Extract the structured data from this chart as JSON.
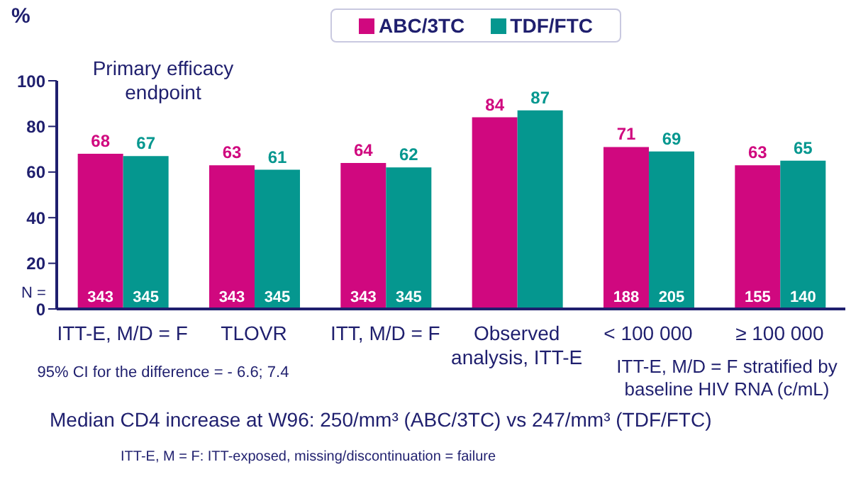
{
  "chart_data": {
    "type": "bar",
    "ylabel": "%",
    "categories": [
      "ITT-E, M/D = F",
      "TLOVR",
      "ITT, M/D = F",
      "Observed analysis, ITT-E",
      "< 100 000",
      "≥ 100 000"
    ],
    "series": [
      {
        "name": "ABC/3TC",
        "color": "#d0087f",
        "values": [
          68,
          63,
          64,
          84,
          71,
          63
        ]
      },
      {
        "name": "TDF/FTC",
        "color": "#05978f",
        "values": [
          67,
          61,
          62,
          87,
          69,
          65
        ]
      }
    ],
    "ylim": [
      0,
      100
    ],
    "yticks": [
      0,
      20,
      40,
      60,
      80,
      100
    ],
    "legend": "top right",
    "data_labels": true,
    "annotations": [
      "Primary efficacy endpoint",
      "N =",
      "ITT-E, M/D = F stratified by baseline HIV RNA (c/mL)",
      "95% CI for the difference = - 6.6; 7.4",
      "Median CD4 increase at W96: 250/mm³ (ABC/3TC) vs 247/mm³ (TDF/FTC)",
      "ITT-E, M = F: ITT-exposed, missing/discontinuation = failure",
      {
        "text": "343",
        "x": "ITT-E, M/D = F",
        "y": 0
      },
      {
        "text": "345",
        "x": "ITT-E, M/D = F",
        "y": 0
      },
      {
        "text": "343",
        "x": "TLOVR",
        "y": 0
      },
      {
        "text": "345",
        "x": "TLOVR",
        "y": 0
      },
      {
        "text": "343",
        "x": "ITT, M/D = F",
        "y": 0
      },
      {
        "text": "345",
        "x": "ITT, M/D = F",
        "y": 0
      },
      {
        "text": "188",
        "x": "< 100 000",
        "y": 0
      },
      {
        "text": "205",
        "x": "< 100 000",
        "y": 0
      },
      {
        "text": "155",
        "x": "≥ 100 000",
        "y": 0
      },
      {
        "text": "140",
        "x": "≥ 100 000",
        "y": 0
      }
    ]
  }
}
